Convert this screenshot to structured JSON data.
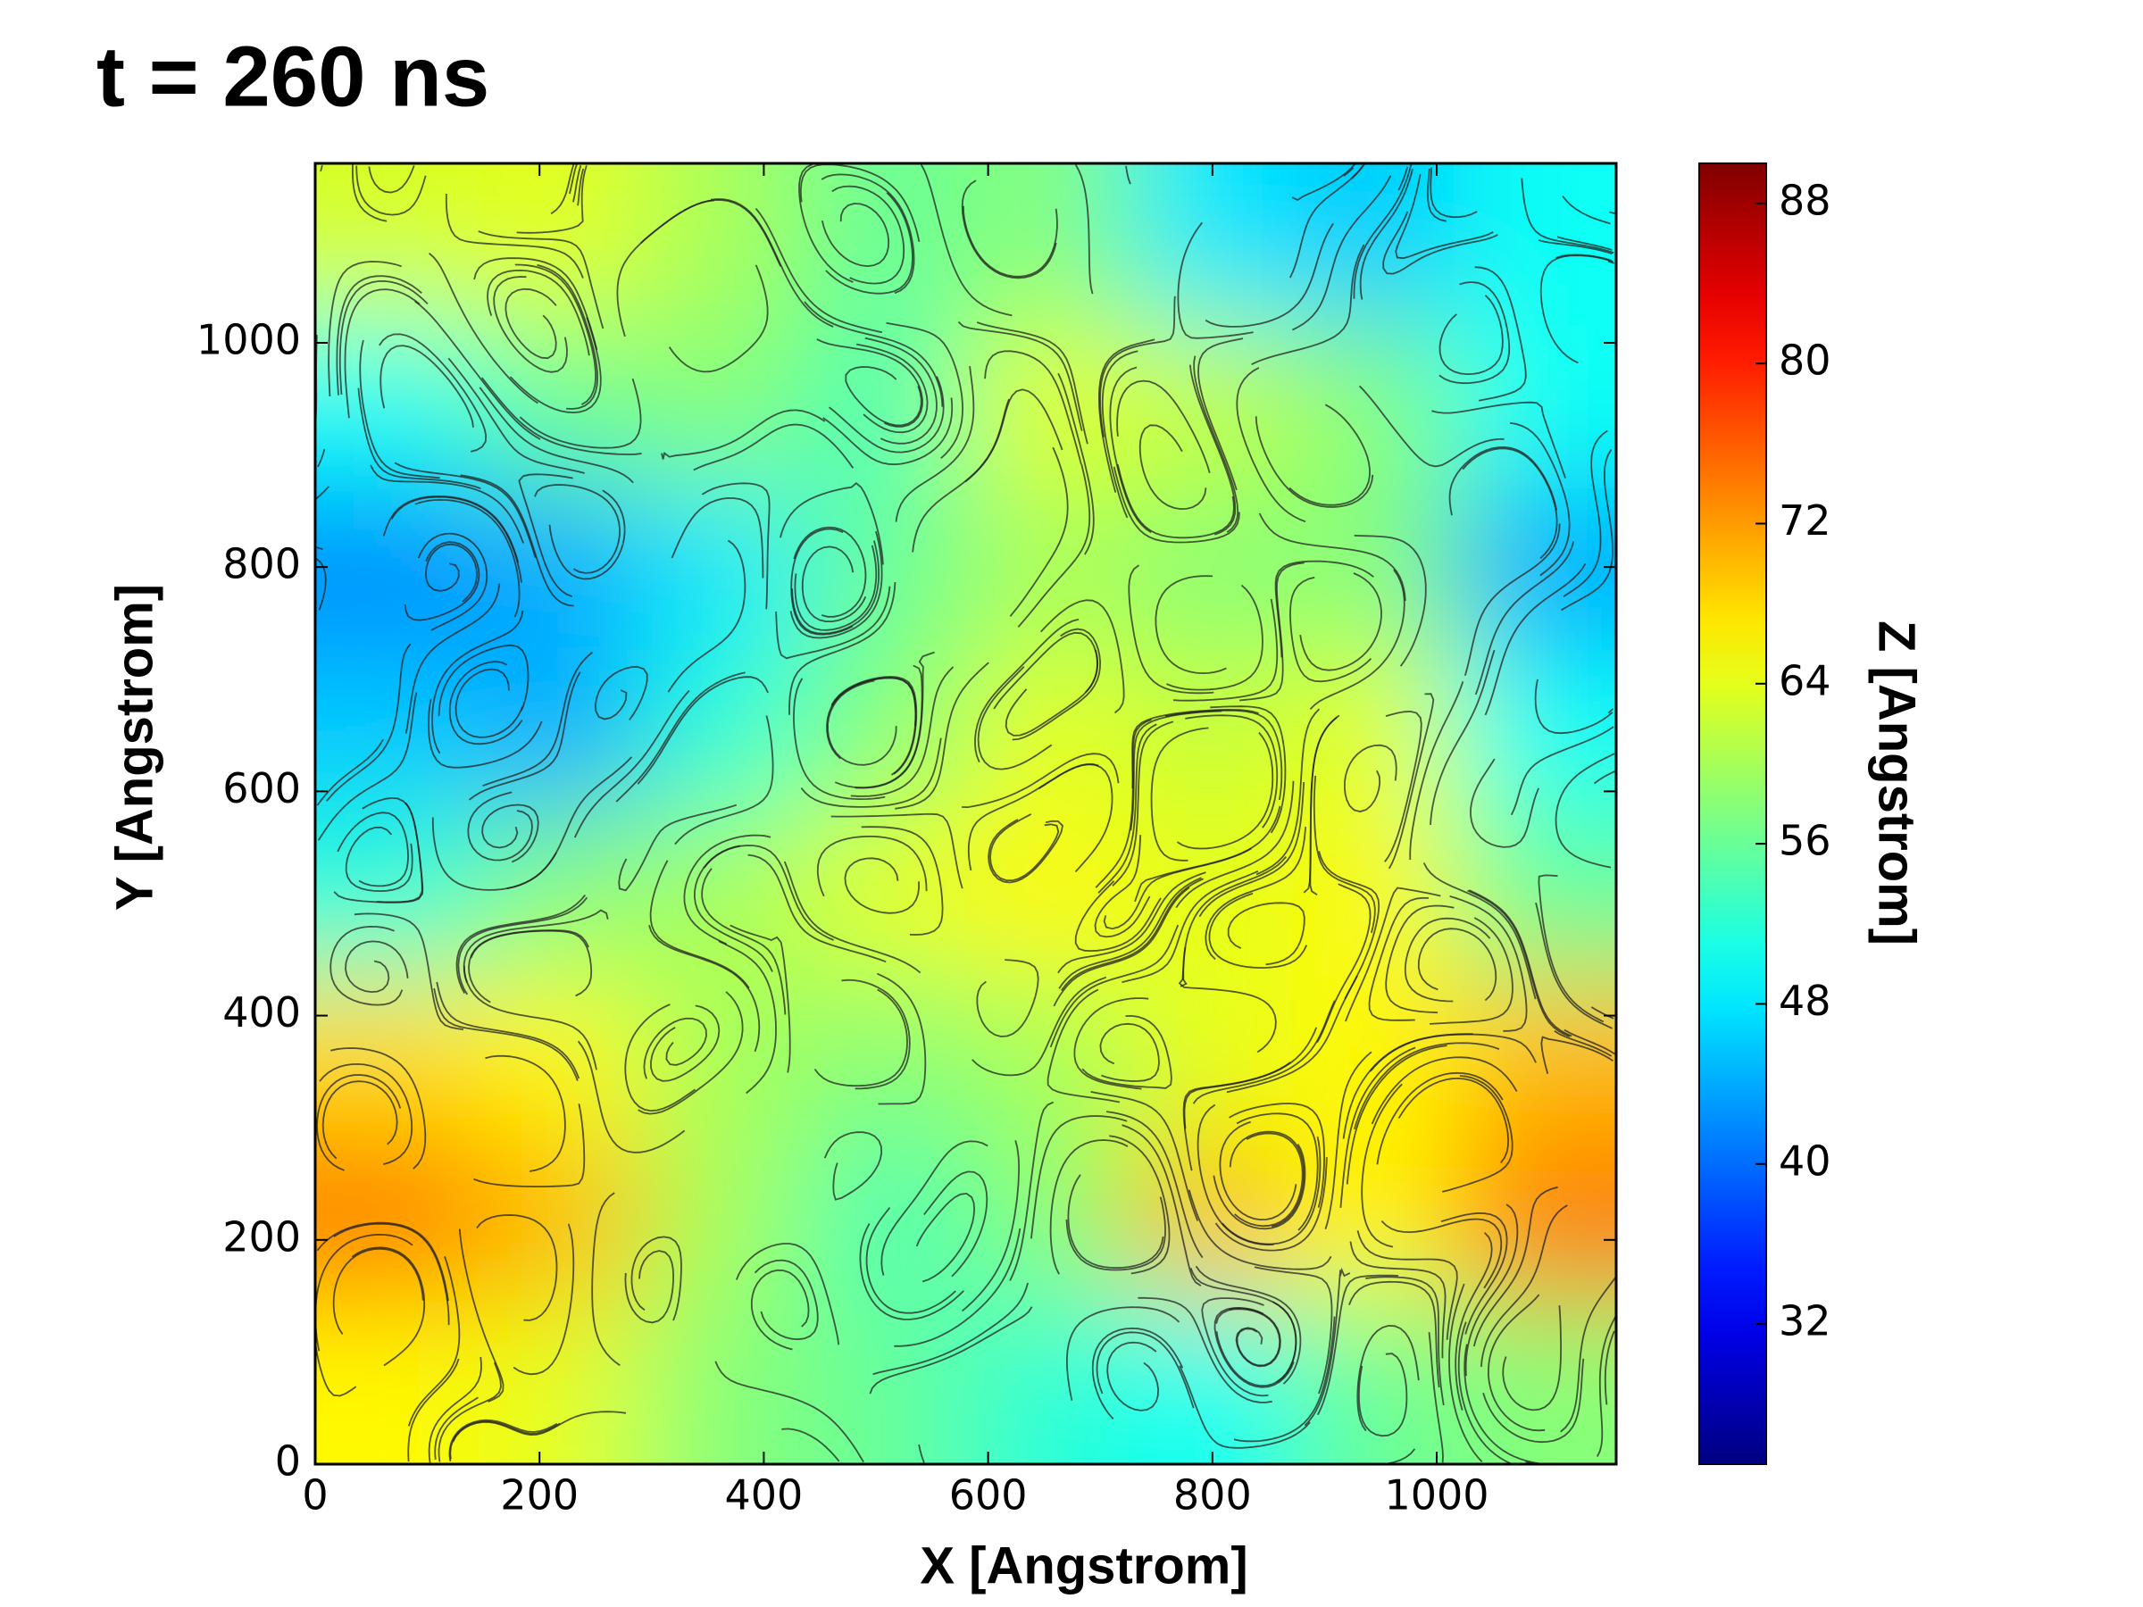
{
  "chart_data": {
    "type": "heatmap",
    "title": "t = 260 ns",
    "x_label": "X [Angstrom]",
    "y_label": "Y [Angstrom]",
    "colorbar_label": "Z [Angstrom]",
    "colormap": "jet",
    "xlim": [
      0,
      1160
    ],
    "ylim": [
      0,
      1160
    ],
    "xticks": [
      0,
      200,
      400,
      600,
      800,
      1000
    ],
    "yticks": [
      0,
      200,
      400,
      600,
      800,
      1000
    ],
    "clim": [
      25,
      90
    ],
    "cticks": [
      32,
      40,
      48,
      56,
      64,
      72,
      80,
      88
    ],
    "z": [
      [
        63,
        64,
        60,
        56,
        58,
        48,
        46,
        50
      ],
      [
        50,
        56,
        58,
        54,
        64,
        62,
        58,
        50
      ],
      [
        42,
        44,
        48,
        56,
        60,
        58,
        58,
        44
      ],
      [
        46,
        44,
        52,
        58,
        64,
        62,
        64,
        50
      ],
      [
        52,
        58,
        60,
        64,
        66,
        64,
        66,
        56
      ],
      [
        68,
        66,
        60,
        58,
        60,
        64,
        66,
        70
      ],
      [
        74,
        70,
        60,
        54,
        58,
        70,
        66,
        74
      ],
      [
        66,
        64,
        58,
        56,
        52,
        50,
        56,
        58
      ]
    ]
  }
}
